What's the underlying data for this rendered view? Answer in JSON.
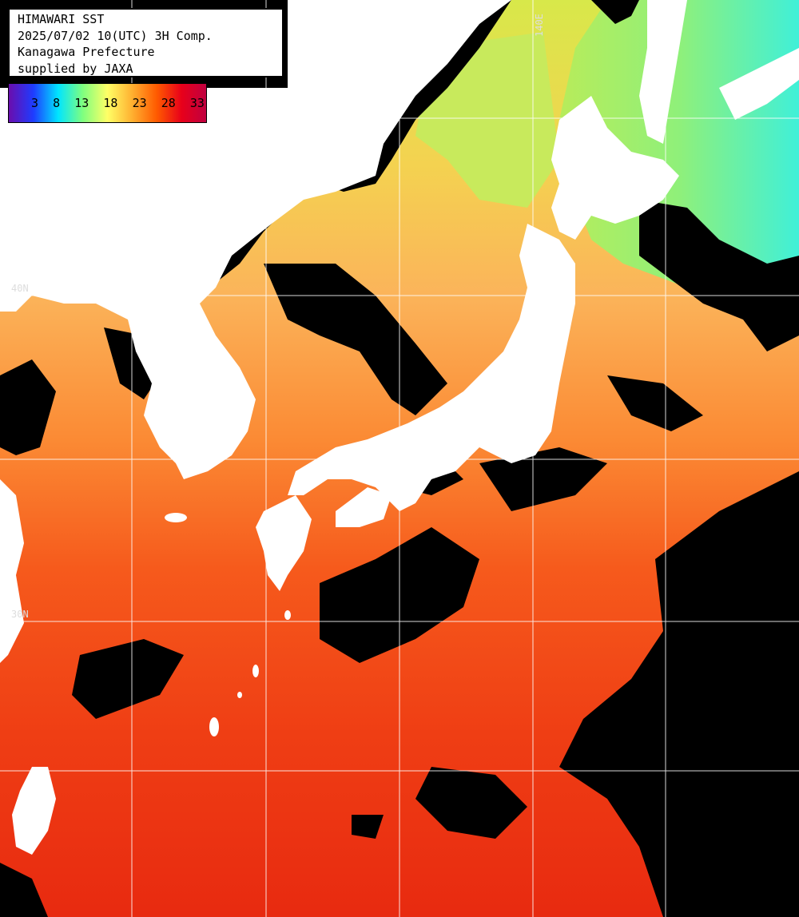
{
  "header": {
    "line1": "HIMAWARI SST",
    "line2": "2025/07/02 10(UTC) 3H Comp.",
    "line3": "Kanagawa Prefecture",
    "line4": "supplied by JAXA"
  },
  "colorbar": {
    "ticks": [
      "3",
      "8",
      "13",
      "18",
      "23",
      "28",
      "33"
    ],
    "colors": [
      "#6a0dad",
      "#1e3cff",
      "#00e5ff",
      "#7fff7f",
      "#ffff66",
      "#ffb030",
      "#ff5a00",
      "#e8001a",
      "#c00040"
    ]
  },
  "grid": {
    "lon_labels": [
      "140E"
    ],
    "lat_labels": [
      "40N",
      "30N"
    ]
  },
  "colors": {
    "land": "#ffffff",
    "cloud": "#000000",
    "grid": "#ffffff"
  }
}
